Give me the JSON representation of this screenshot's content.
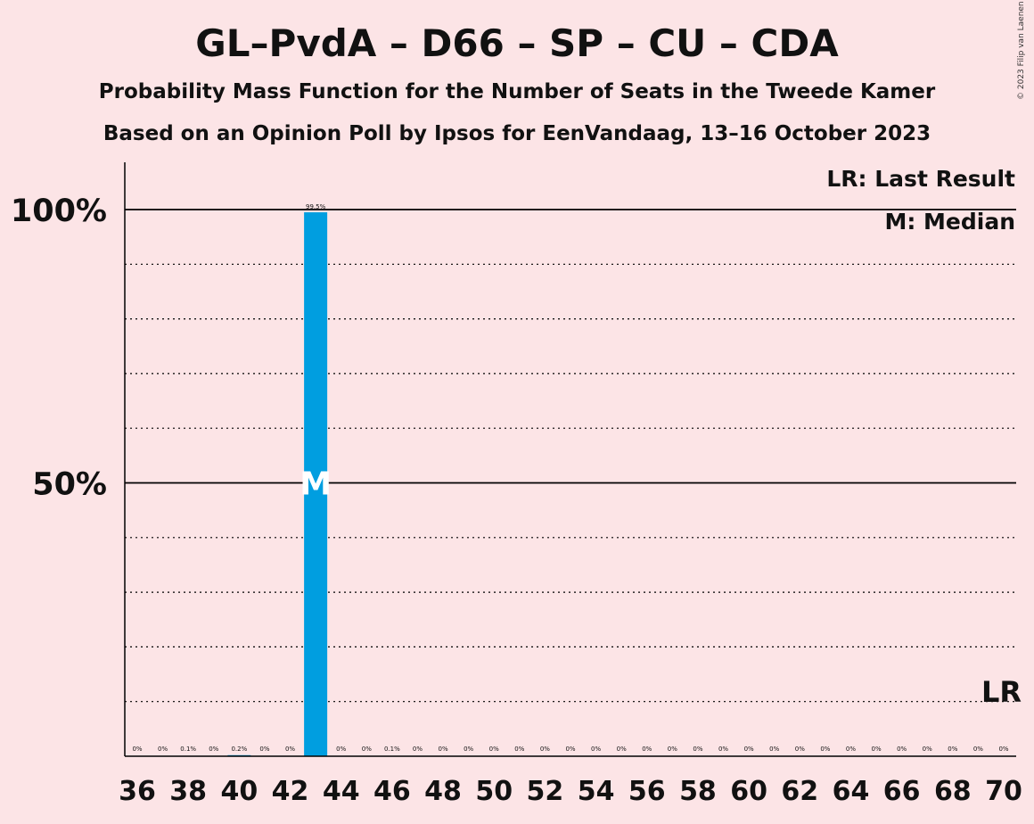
{
  "title": "GL–PvdA – D66 – SP – CU – CDA",
  "subtitle": "Probability Mass Function for the Number of Seats in the Tweede Kamer",
  "subtitle2": "Based on an Opinion Poll by Ipsos for EenVandaag, 13–16 October 2023",
  "copyright": "© 2023 Filip van Laenen",
  "legend": {
    "last_result": "LR: Last Result",
    "median": "M: Median"
  },
  "chart_data": {
    "type": "bar",
    "x": [
      36,
      37,
      38,
      39,
      40,
      41,
      42,
      43,
      44,
      45,
      46,
      47,
      48,
      49,
      50,
      51,
      52,
      53,
      54,
      55,
      56,
      57,
      58,
      59,
      60,
      61,
      62,
      63,
      64,
      65,
      66,
      67,
      68,
      69,
      70
    ],
    "values": [
      0,
      0,
      0.1,
      0,
      0.2,
      0,
      0,
      99.5,
      0,
      0,
      0.1,
      0,
      0,
      0,
      0,
      0,
      0,
      0,
      0,
      0,
      0,
      0,
      0,
      0,
      0,
      0,
      0,
      0,
      0,
      0,
      0,
      0,
      0,
      0,
      0
    ],
    "value_labels": [
      "0%",
      "0%",
      "0.1%",
      "0%",
      "0.2%",
      "0%",
      "0%",
      "99.5%",
      "0%",
      "0%",
      "0.1%",
      "0%",
      "0%",
      "0%",
      "0%",
      "0%",
      "0%",
      "0%",
      "0%",
      "0%",
      "0%",
      "0%",
      "0%",
      "0%",
      "0%",
      "0%",
      "0%",
      "0%",
      "0%",
      "0%",
      "0%",
      "0%",
      "0%",
      "0%",
      "0%"
    ],
    "x_tick_labels": [
      "36",
      "38",
      "40",
      "42",
      "44",
      "46",
      "48",
      "50",
      "52",
      "54",
      "56",
      "58",
      "60",
      "62",
      "64",
      "66",
      "68",
      "70"
    ],
    "x_tick_values": [
      36,
      38,
      40,
      42,
      44,
      46,
      48,
      50,
      52,
      54,
      56,
      58,
      60,
      62,
      64,
      66,
      68,
      70
    ],
    "y_tick_labels": [
      "50%",
      "100%"
    ],
    "y_tick_values": [
      50,
      100
    ],
    "ylim": [
      0,
      100
    ],
    "median": 43,
    "median_marker": "M",
    "last_result": 70,
    "last_result_marker": "LR",
    "bar_color": "#009ee0",
    "grid": "dotted every 10%"
  }
}
